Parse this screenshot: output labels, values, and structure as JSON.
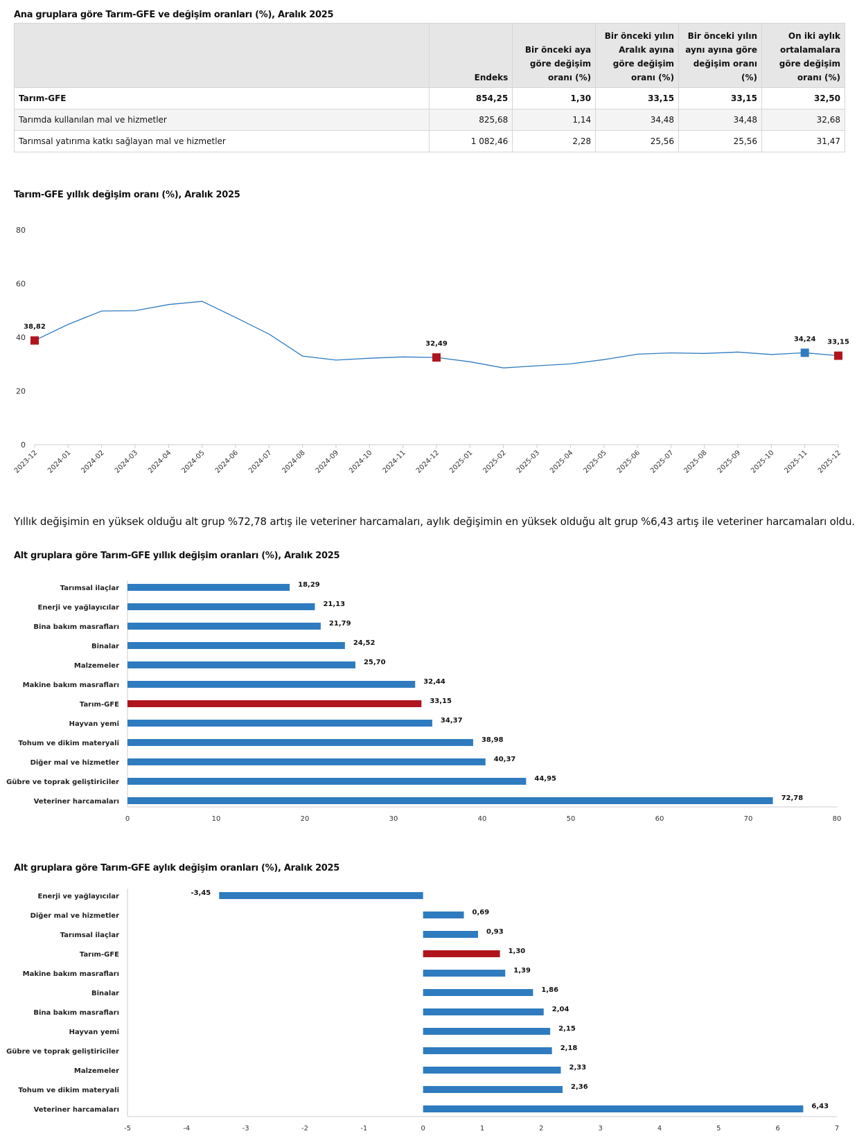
{
  "table": {
    "title": "Ana gruplara göre Tarım-GFE ve değişim oranları (%), Aralık 2025",
    "headers": [
      "",
      "Endeks",
      "Bir önceki aya göre değişim oranı (%)",
      "Bir önceki yılın Aralık ayına göre değişim oranı (%)",
      "Bir önceki yılın aynı ayına göre değişim oranı (%)",
      "On iki aylık ortalamalara göre değişim oranı (%)"
    ],
    "rows": [
      [
        "Tarım-GFE",
        "854,25",
        "1,30",
        "33,15",
        "33,15",
        "32,50"
      ],
      [
        "Tarımda kullanılan mal ve hizmetler",
        "825,68",
        "1,14",
        "34,48",
        "34,48",
        "32,68"
      ],
      [
        "Tarımsal yatırıma katkı sağlayan mal ve hizmetler",
        "1 082,46",
        "2,28",
        "25,56",
        "25,56",
        "31,47"
      ]
    ]
  },
  "line_title": "Tarım-GFE yıllık değişim oranı (%), Aralık 2025",
  "summary_text": "Yıllık değişimin en yüksek olduğu alt grup %72,78 artış ile veteriner harcamaları, aylık değişimin en yüksek olduğu alt grup %6,43 artış ile veteriner harcamaları oldu.",
  "bar1_title": "Alt gruplara göre Tarım-GFE yıllık değişim oranları (%), Aralık 2025",
  "bar2_title": "Alt gruplara göre Tarım-GFE aylık değişim oranları (%), Aralık 2025",
  "colors": {
    "blue": "#2f7bbf",
    "red": "#b0151d",
    "axis": "#cccccc",
    "grid": "#e6e6e6"
  },
  "chart_data": [
    {
      "type": "line",
      "title": "Tarım-GFE yıllık değişim oranı (%), Aralık 2025",
      "x": [
        "2023-12",
        "2024-01",
        "2024-02",
        "2024-03",
        "2024-04",
        "2024-05",
        "2024-06",
        "2024-07",
        "2024-08",
        "2024-09",
        "2024-10",
        "2024-11",
        "2024-12",
        "2025-01",
        "2025-02",
        "2025-03",
        "2025-04",
        "2025-05",
        "2025-06",
        "2025-07",
        "2025-08",
        "2025-09",
        "2025-10",
        "2025-11",
        "2025-12"
      ],
      "values": [
        38.82,
        44.8,
        49.8,
        49.9,
        52.2,
        53.4,
        47.4,
        41.2,
        33.0,
        31.5,
        32.2,
        32.7,
        32.49,
        30.9,
        28.6,
        29.4,
        30.1,
        31.7,
        33.7,
        34.2,
        34.0,
        34.5,
        33.6,
        34.24,
        33.15
      ],
      "markers": [
        {
          "index": 0,
          "label": "38,82",
          "color": "red"
        },
        {
          "index": 12,
          "label": "32,49",
          "color": "red"
        },
        {
          "index": 23,
          "label": "34,24",
          "color": "blue"
        },
        {
          "index": 24,
          "label": "33,15",
          "color": "red"
        }
      ],
      "yticks": [
        "0",
        "20",
        "40",
        "60",
        "80"
      ],
      "ylim": [
        0,
        80
      ]
    },
    {
      "type": "bar",
      "orientation": "horizontal",
      "title": "Alt gruplara göre Tarım-GFE yıllık değişim oranları (%), Aralık 2025",
      "categories": [
        "Tarımsal ilaçlar",
        "Enerji  ve yağlayıcılar",
        "Bina bakım masrafları",
        "Binalar",
        "Malzemeler",
        "Makine bakım masrafları",
        "Tarım-GFE",
        "Hayvan yemi",
        "Tohum ve dikim materyali",
        "Diğer mal ve hizmetler",
        "Gübre ve toprak geliştiriciler",
        "Veteriner harcamaları"
      ],
      "values": [
        18.29,
        21.13,
        21.79,
        24.52,
        25.7,
        32.44,
        33.15,
        34.37,
        38.98,
        40.37,
        44.95,
        72.78
      ],
      "labels": [
        "18,29",
        "21,13",
        "21,79",
        "24,52",
        "25,70",
        "32,44",
        "33,15",
        "34,37",
        "38,98",
        "40,37",
        "44,95",
        "72,78"
      ],
      "highlight": "Tarım-GFE",
      "xticks": [
        "0",
        "10",
        "20",
        "30",
        "40",
        "50",
        "60",
        "70",
        "80"
      ],
      "xlim": [
        0,
        80
      ]
    },
    {
      "type": "bar",
      "orientation": "horizontal",
      "title": "Alt gruplara göre Tarım-GFE aylık değişim oranları (%), Aralık 2025",
      "categories": [
        "Enerji  ve yağlayıcılar",
        "Diğer mal ve hizmetler",
        "Tarımsal ilaçlar",
        "Tarım-GFE",
        "Makine bakım masrafları",
        "Binalar",
        "Bina bakım masrafları",
        "Hayvan yemi",
        "Gübre ve toprak geliştiriciler",
        "Malzemeler",
        "Tohum ve dikim materyali",
        "Veteriner harcamaları"
      ],
      "values": [
        -3.45,
        0.69,
        0.93,
        1.3,
        1.39,
        1.86,
        2.04,
        2.15,
        2.18,
        2.33,
        2.36,
        6.43
      ],
      "labels": [
        "-3,45",
        "0,69",
        "0,93",
        "1,30",
        "1,39",
        "1,86",
        "2,04",
        "2,15",
        "2,18",
        "2,33",
        "2,36",
        "6,43"
      ],
      "highlight": "Tarım-GFE",
      "xticks": [
        "-5",
        "-4",
        "-3",
        "-2",
        "-1",
        "0",
        "1",
        "2",
        "3",
        "4",
        "5",
        "6",
        "7"
      ],
      "xlim": [
        -5,
        7
      ]
    }
  ]
}
